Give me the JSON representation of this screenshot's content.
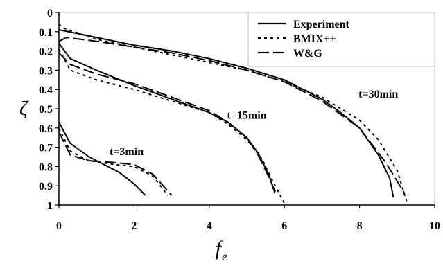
{
  "chart_data": {
    "type": "line",
    "title": "",
    "xlabel": "f",
    "xlabel_sub": "e",
    "ylabel": "ζ",
    "xlim": [
      0,
      10
    ],
    "ylim": [
      0,
      1
    ],
    "y_inverted": true,
    "x_ticks": [
      "0",
      "2",
      "4",
      "6",
      "8",
      "10"
    ],
    "y_ticks": [
      "0",
      "0.1",
      "0.2",
      "0.3",
      "0.4",
      "0.5",
      "0.6",
      "0.7",
      "0.8",
      "0.9",
      "1"
    ],
    "grid": false,
    "legend_position": "top-right",
    "legend": [
      {
        "label": "Experiment",
        "style": "solid"
      },
      {
        "label": "BMIX++",
        "style": "dotted"
      },
      {
        "label": "W&G",
        "style": "dashed"
      }
    ],
    "annotations": [
      {
        "text": "t=30min",
        "x": 8.5,
        "y": 0.42
      },
      {
        "text": "t=15min",
        "x": 5.0,
        "y": 0.53
      },
      {
        "text": "t=3min",
        "x": 1.8,
        "y": 0.72
      }
    ],
    "series": [
      {
        "group": "t=30min",
        "style": "solid",
        "x": [
          0,
          1,
          2,
          3,
          4,
          5,
          6,
          7,
          7.5,
          8,
          8.5,
          8.8,
          8.9
        ],
        "y": [
          0.09,
          0.13,
          0.17,
          0.2,
          0.24,
          0.29,
          0.35,
          0.45,
          0.52,
          0.6,
          0.74,
          0.86,
          0.96
        ]
      },
      {
        "group": "t=30min",
        "style": "dotted",
        "x": [
          0,
          0.1,
          1,
          2,
          3,
          4,
          5,
          6,
          7,
          8,
          8.5,
          9,
          9.25
        ],
        "y": [
          0.06,
          0.08,
          0.14,
          0.18,
          0.22,
          0.26,
          0.3,
          0.36,
          0.44,
          0.56,
          0.66,
          0.82,
          0.98
        ]
      },
      {
        "group": "t=30min",
        "style": "dashed",
        "x": [
          0,
          0.2,
          1,
          2,
          3,
          4,
          5,
          6,
          7,
          8,
          8.7,
          9.2
        ],
        "y": [
          0.15,
          0.13,
          0.15,
          0.18,
          0.21,
          0.25,
          0.3,
          0.36,
          0.46,
          0.6,
          0.78,
          0.94
        ]
      },
      {
        "group": "t=15min",
        "style": "solid",
        "x": [
          0,
          0.3,
          1,
          2,
          3,
          4,
          4.5,
          5,
          5.3,
          5.6,
          5.75
        ],
        "y": [
          0.16,
          0.24,
          0.3,
          0.38,
          0.45,
          0.52,
          0.57,
          0.65,
          0.73,
          0.85,
          0.94
        ]
      },
      {
        "group": "t=15min",
        "style": "dotted",
        "x": [
          0,
          0.3,
          1,
          2,
          3,
          4,
          4.5,
          5,
          5.4,
          5.7,
          6.0
        ],
        "y": [
          0.19,
          0.3,
          0.35,
          0.4,
          0.46,
          0.52,
          0.58,
          0.66,
          0.76,
          0.88,
          0.99
        ]
      },
      {
        "group": "t=15min",
        "style": "dashed",
        "x": [
          0,
          0.3,
          1,
          2,
          3,
          4,
          4.5,
          5,
          5.3,
          5.6,
          5.8
        ],
        "y": [
          0.21,
          0.27,
          0.32,
          0.37,
          0.44,
          0.51,
          0.57,
          0.65,
          0.74,
          0.86,
          0.95
        ]
      },
      {
        "group": "t=3min",
        "style": "solid",
        "x": [
          0,
          0.3,
          0.8,
          1.2,
          1.6,
          2.0,
          2.3
        ],
        "y": [
          0.57,
          0.68,
          0.75,
          0.79,
          0.83,
          0.89,
          0.95
        ]
      },
      {
        "group": "t=3min",
        "style": "dotted",
        "x": [
          0,
          0.3,
          0.8,
          1.5,
          2.0,
          2.5,
          2.9
        ],
        "y": [
          0.6,
          0.72,
          0.77,
          0.79,
          0.8,
          0.85,
          0.95
        ]
      },
      {
        "group": "t=3min",
        "style": "dashed",
        "x": [
          0,
          0.3,
          0.8,
          1.5,
          2.0,
          2.5,
          3.0
        ],
        "y": [
          0.62,
          0.74,
          0.77,
          0.78,
          0.79,
          0.84,
          0.95
        ]
      }
    ]
  }
}
